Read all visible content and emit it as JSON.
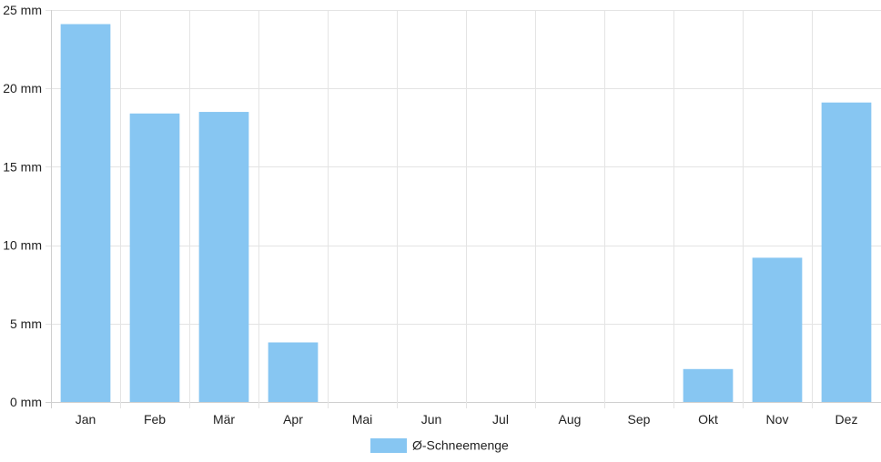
{
  "chart_data": {
    "type": "bar",
    "categories": [
      "Jan",
      "Feb",
      "Mär",
      "Apr",
      "Mai",
      "Jun",
      "Jul",
      "Aug",
      "Sep",
      "Okt",
      "Nov",
      "Dez"
    ],
    "series": [
      {
        "name": "Ø-Schneemenge",
        "values": [
          24.1,
          18.4,
          18.5,
          3.8,
          0,
          0,
          0,
          0,
          0,
          2.1,
          9.2,
          19.1
        ]
      }
    ],
    "ylim": [
      0,
      25
    ],
    "yticks": [
      0,
      5,
      10,
      15,
      20,
      25
    ],
    "ytick_labels": [
      "0 mm",
      "5 mm",
      "10 mm",
      "15 mm",
      "20 mm",
      "25 mm"
    ],
    "grid": true,
    "legend_position": "bottom",
    "colors": {
      "bar": "#87c6f2",
      "grid": "#e4e4e4",
      "axis": "#cfcfcf",
      "text": "#222222"
    }
  }
}
